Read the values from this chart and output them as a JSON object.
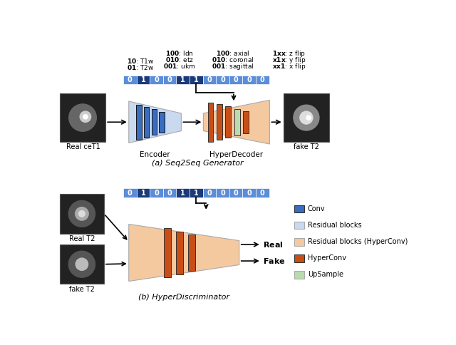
{
  "bg_color": "#ffffff",
  "bit_values": [
    0,
    1,
    0,
    0,
    1,
    1,
    0,
    0,
    0,
    0,
    0
  ],
  "bit_color_light": "#5b8dd9",
  "bit_color_dark": "#1a3a7a",
  "bit_text_color": "#ffffff",
  "encoder_color": "#c9d9f0",
  "encoder_bar_color": "#3a6dbf",
  "hyperdecoder_color": "#f5c9a0",
  "hyperconv_color": "#c84e18",
  "upsample_color": "#b8dbb0",
  "discriminator_color": "#f5c9a0",
  "legend_conv_color": "#3a6dbf",
  "legend_residual_color": "#c9d9f0",
  "legend_residual_hyper_color": "#f5c9a0",
  "legend_hyperconv_color": "#c84e18",
  "legend_upsample_color": "#b8dbb0",
  "label_a": "(a) Seq2Seq Generator",
  "label_b": "(b) HyperDiscriminator"
}
